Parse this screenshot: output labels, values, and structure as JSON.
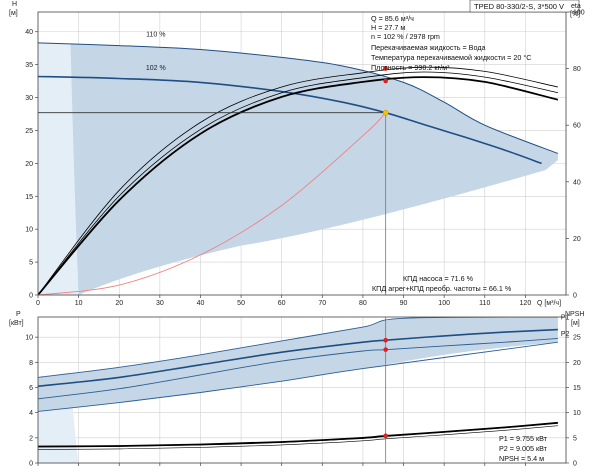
{
  "model_label": "TPED 80-330/2-S, 3*500 V",
  "colors": {
    "envelope": "#c5d6e6",
    "envelope_light": "#e4eef7",
    "curve": "#1f4e84",
    "curve_thin": "#2c5f96",
    "efficiency": "#000000",
    "system_curve": "#f08080",
    "duty_point": "#e02020",
    "duty_point_head": "#f5c400",
    "frame": "#444444"
  },
  "top_info": [
    "Q = 85.6 м³/ч",
    "H = 27.7 м",
    "n = 102 % / 2978 rpm",
    "Перекачиваемая жидкость = Вода",
    "Температура перекачиваемой жидкости = 20 °C",
    "Плотность = 998.2 кг/м³"
  ],
  "efficiency_info": [
    "КПД насоса = 71.6 %",
    "КПД агрег+КПД преобр. частоты = 66.1 %"
  ],
  "bottom_info": [
    "P1 = 9.755 кВт",
    "P2 = 9.005 кВт",
    "NPSH = 5.4 м"
  ],
  "chart_data": [
    {
      "type": "line",
      "panel": "head-efficiency",
      "y_axis_left": {
        "label_top": "H",
        "label_unit": "[м]",
        "ticks": [
          "0",
          "5",
          "10",
          "15",
          "20",
          "25",
          "30",
          "35",
          "40"
        ],
        "range": [
          0,
          43
        ]
      },
      "y_axis_right": {
        "label_top": "eta",
        "label_unit": "[%]",
        "ticks": [
          "0",
          "20",
          "40",
          "60",
          "80",
          "100"
        ],
        "range": [
          0,
          100
        ]
      },
      "x_axis": {
        "label": "Q [м³/ч]",
        "ticks": [
          "0",
          "10",
          "20",
          "30",
          "40",
          "50",
          "60",
          "70",
          "80",
          "90",
          "100",
          "110",
          "120"
        ],
        "range": [
          0,
          130
        ]
      },
      "series": [
        {
          "name": "110 %",
          "x": [
            0,
            20,
            40,
            60,
            75,
            90,
            100,
            110,
            128
          ],
          "y": [
            38.3,
            37.9,
            37.3,
            36.1,
            34.8,
            32.3,
            29.3,
            25.8,
            21.5
          ]
        },
        {
          "name": "102 %",
          "x": [
            0,
            20,
            40,
            60,
            75,
            85.6,
            95,
            105,
            115,
            124
          ],
          "y": [
            33.2,
            32.9,
            32.3,
            30.9,
            29.3,
            27.7,
            25.9,
            24.0,
            22.0,
            20.0
          ]
        }
      ],
      "system_curve": {
        "x": [
          0,
          20,
          40,
          60,
          80,
          85.6
        ],
        "y": [
          0,
          1.5,
          6.1,
          13.6,
          24.2,
          27.7
        ]
      },
      "efficiency_curves": [
        {
          "x": [
            0,
            20,
            40,
            60,
            80,
            95,
            110,
            128
          ],
          "y": [
            0,
            37.0,
            61.0,
            73.5,
            78.5,
            80.5,
            79.0,
            73.5
          ]
        },
        {
          "x": [
            0,
            20,
            40,
            60,
            80,
            95,
            110,
            128
          ],
          "y": [
            0,
            35.0,
            58.5,
            71.5,
            76.8,
            78.8,
            77.0,
            71.5
          ]
        },
        {
          "x": [
            0,
            20,
            40,
            60,
            80,
            95,
            110,
            128
          ],
          "y": [
            0,
            33.5,
            57.0,
            70.0,
            75.3,
            77.0,
            75.3,
            69.0
          ]
        }
      ],
      "operating_point": {
        "q": 85.6,
        "h": 27.7,
        "eta_pump": 71.6,
        "eta_total": 66.1
      },
      "efficiency_markers": [
        80.0,
        75.6
      ]
    },
    {
      "type": "line",
      "panel": "power-npsh",
      "y_axis_left": {
        "label_top": "P",
        "label_unit": "[кВт]",
        "ticks": [
          "0",
          "2",
          "4",
          "6",
          "8",
          "10"
        ],
        "range": [
          0,
          11.6
        ]
      },
      "y_axis_right": {
        "label_top": "NPSH",
        "label_unit": "[м]",
        "ticks": [
          "0",
          "5",
          "10",
          "15",
          "20",
          "25"
        ],
        "range": [
          0,
          29
        ]
      },
      "x_axis": {
        "range": [
          0,
          130
        ]
      },
      "series": [
        {
          "name": "P1",
          "x": [
            0,
            20,
            40,
            60,
            80,
            85.6,
            100,
            115,
            128
          ],
          "y": [
            6.1,
            6.8,
            7.8,
            8.8,
            9.6,
            9.755,
            10.1,
            10.4,
            10.6
          ]
        },
        {
          "name": "P2",
          "x": [
            0,
            20,
            40,
            60,
            80,
            85.6,
            100,
            115,
            128
          ],
          "y": [
            5.1,
            5.9,
            7.0,
            8.1,
            8.9,
            9.005,
            9.3,
            9.6,
            9.9
          ]
        },
        {
          "name": "NPSH",
          "x": [
            0,
            20,
            40,
            60,
            80,
            85.6,
            100,
            115,
            128
          ],
          "y": [
            3.3,
            3.4,
            3.7,
            4.2,
            5.0,
            5.4,
            6.2,
            7.1,
            8.0
          ]
        }
      ],
      "operating_point": {
        "q": 85.6,
        "p1": 9.755,
        "p2": 9.005,
        "npsh": 5.4
      }
    }
  ]
}
